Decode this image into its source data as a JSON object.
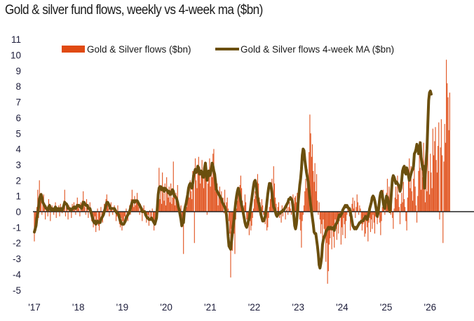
{
  "title": "Gold & silver fund flows, weekly vs 4-week ma ($bn)",
  "chart_data": {
    "type": "bar",
    "title": "Gold & silver fund flows, weekly vs 4-week ma ($bn)",
    "xlabel": "",
    "ylabel": "",
    "ylim": [
      -5,
      11
    ],
    "yticks": [
      11,
      10,
      9,
      8,
      7,
      6,
      5,
      4,
      3,
      2,
      1,
      0,
      -1,
      -2,
      -3,
      -4,
      -5
    ],
    "ytick_labels": [
      "11",
      "10",
      "9",
      "8",
      "7",
      "6",
      "5",
      "4",
      "3",
      "2",
      "1",
      "0",
      "-1",
      "-2",
      "-3",
      "-4",
      "-5"
    ],
    "xlim": [
      2017.0,
      2026.85
    ],
    "xticks": [
      2017,
      2018,
      2019,
      2020,
      2021,
      2022,
      2023,
      2024,
      2025,
      2026
    ],
    "xtick_labels": [
      "'17",
      "'18",
      "'19",
      "'20",
      "'21",
      "'22",
      "'23",
      "'24",
      "'25",
      "'26"
    ],
    "grid": false,
    "legend": {
      "placement": "top",
      "entries": [
        {
          "name": "Gold & Silver flows ($bn)",
          "type": "bar",
          "color": "#e04a12"
        },
        {
          "name": "Gold & Silver flows 4-week MA ($bn)",
          "type": "line",
          "color": "#6b4f0e"
        }
      ]
    },
    "colors": {
      "bars": "#e04a12",
      "line": "#6b4f0e",
      "zero_line": "#222222"
    },
    "x_start": 2017.0,
    "x_step_weeks": 1,
    "series": [
      {
        "name": "Gold & Silver flows ($bn)",
        "type": "bar",
        "values": [
          -1.9,
          -0.8,
          -1.2,
          0.3,
          1.4,
          -0.4,
          2.0,
          0.9,
          1.2,
          -0.2,
          0.6,
          1.1,
          0.3,
          -0.5,
          0.4,
          0.2,
          -0.3,
          0.8,
          0.5,
          -0.6,
          0.2,
          0.4,
          0.1,
          -0.2,
          0.3,
          0.6,
          -0.4,
          0.2,
          0.0,
          0.4,
          -0.3,
          0.5,
          0.2,
          -0.1,
          0.3,
          0.7,
          1.4,
          -0.3,
          0.6,
          0.2,
          -0.5,
          0.4,
          0.3,
          0.1,
          -0.4,
          0.5,
          0.2,
          0.6,
          0.3,
          -0.2,
          0.5,
          0.9,
          0.4,
          0.2,
          -0.3,
          0.6,
          0.1,
          0.7,
          1.3,
          0.5,
          0.3,
          -0.2,
          0.8,
          0.3,
          -0.4,
          0.2,
          0.6,
          -0.2,
          -0.6,
          -0.4,
          -1.0,
          -0.8,
          -0.3,
          -1.3,
          -0.6,
          0.2,
          -0.9,
          -1.2,
          -0.5,
          0.3,
          -0.4,
          -0.7,
          0.1,
          0.5,
          0.2,
          0.8,
          1.1,
          0.4,
          0.2,
          -0.3,
          0.1,
          0.6,
          0.3,
          -0.2,
          0.2,
          0.4,
          0.1,
          -0.6,
          -0.3,
          0.4,
          -0.2,
          -0.8,
          -1.0,
          -0.4,
          -1.2,
          -0.6,
          -0.9,
          -0.3,
          -0.7,
          0.2,
          -0.4,
          -0.6,
          0.1,
          0.4,
          -0.2,
          0.8,
          1.4,
          0.6,
          0.3,
          1.0,
          0.4,
          0.7,
          1.2,
          0.6,
          0.3,
          -0.2,
          0.5,
          0.1,
          -0.6,
          0.2,
          0.4,
          0.1,
          -0.3,
          -0.7,
          -0.4,
          -0.2,
          -0.9,
          0.1,
          -0.5,
          -0.4,
          0.2,
          -0.6,
          -1.2,
          -0.8,
          -0.3,
          -0.5,
          0.4,
          1.5,
          2.8,
          0.8,
          1.6,
          0.5,
          2.5,
          1.2,
          0.7,
          1.8,
          0.4,
          2.2,
          1.3,
          0.9,
          1.6,
          0.6,
          1.8,
          0.5,
          0.9,
          3.2,
          1.0,
          0.4,
          1.2,
          0.8,
          1.7,
          0.6,
          0.3,
          -0.2,
          0.4,
          -1.0,
          -0.6,
          -2.7,
          -0.4,
          0.1,
          0.4,
          0.3,
          0.8,
          1.4,
          0.9,
          2.0,
          1.3,
          0.8,
          2.6,
          1.7,
          -2.0,
          3.4,
          2.0,
          1.5,
          2.8,
          3.5,
          2.4,
          1.8,
          2.6,
          3.3,
          2.1,
          1.5,
          2.9,
          3.2,
          2.2,
          -0.2,
          1.8,
          2.4,
          3.4,
          1.6,
          2.8,
          2.2,
          3.7,
          4.0,
          2.5,
          1.3,
          2.0,
          1.8,
          0.4,
          1.1,
          1.6,
          0.8,
          1.3,
          0.7,
          0.9,
          -0.1,
          1.4,
          0.3,
          0.6,
          0.9,
          0.2,
          -0.6,
          -1.4,
          -4.2,
          -1.1,
          -2.5,
          -0.8,
          -1.4,
          -2.7,
          -0.5,
          0.2,
          0.7,
          1.3,
          0.9,
          1.7,
          2.3,
          1.5,
          0.7,
          -0.3,
          0.4,
          1.1,
          0.6,
          -0.5,
          -0.9,
          -0.3,
          -1.5,
          -0.6,
          -1.2,
          -0.9,
          -0.4,
          0.2,
          0.8,
          1.3,
          1.0,
          1.7,
          2.4,
          1.8,
          0.9,
          0.6,
          0.3,
          0.8,
          0.4,
          -0.2,
          -0.5,
          -0.8,
          -0.3,
          -1.2,
          -1.0,
          -0.4,
          0.3,
          0.8,
          1.5,
          2.1,
          1.3,
          2.9,
          1.8,
          0.9,
          0.5,
          -0.2,
          0.3,
          0.6,
          -0.4,
          -0.2,
          -0.7,
          0.4,
          -0.3,
          0.2,
          0.3,
          -0.5,
          0.1,
          0.4,
          -0.2,
          0.3,
          0.6,
          0.2,
          -0.2,
          0.7,
          1.1,
          0.5,
          0.9,
          1.0,
          0.6,
          1.2,
          0.3,
          0.8,
          -0.5,
          -1.2,
          -2.3,
          -0.6,
          -0.2,
          0.4,
          1.3,
          2.1,
          1.5,
          2.7,
          1.9,
          3.8,
          6.2,
          5.0,
          3.5,
          4.3,
          2.6,
          1.9,
          3.1,
          1.3,
          2.4,
          0.7,
          -0.2,
          0.6,
          -0.5,
          -1.4,
          -0.8,
          -2.3,
          -0.5,
          -1.1,
          -1.7,
          -3.2,
          -2.0,
          -4.6,
          -3.8,
          -2.1,
          -1.7,
          -1.2,
          -2.4,
          -0.9,
          -1.6,
          -2.3,
          -0.5,
          -1.1,
          -1.8,
          -0.8,
          -1.4,
          -0.6,
          -0.3,
          -2.1,
          -1.0,
          -1.5,
          -0.4,
          -0.8,
          -1.7,
          -0.6,
          -0.2,
          0.4,
          0.1,
          -0.3,
          -1.2,
          -0.5,
          0.5,
          0.9,
          0.2,
          0.7,
          -0.4,
          0.3,
          1.1,
          0.6,
          -0.2,
          0.4,
          0.2,
          -0.5,
          -1.2,
          -0.8,
          -0.3,
          -1.6,
          -1.4,
          -0.6,
          -1.0,
          -1.9,
          -0.7,
          -0.4,
          -1.3,
          -0.5,
          -1.1,
          -0.2,
          -0.7,
          -1.4,
          -0.3,
          0.4,
          -0.8,
          -0.4,
          0.2,
          -0.7,
          -1.5,
          -0.6,
          0.3,
          1.4,
          0.6,
          -0.2,
          0.3,
          1.2,
          2.1,
          0.8,
          1.6,
          0.4,
          -0.2,
          0.6,
          -0.4,
          -1.1,
          0.2,
          0.9,
          1.6,
          0.8,
          2.3,
          1.1,
          0.3,
          -0.8,
          0.5,
          1.2,
          0.6,
          1.9,
          0.8,
          0.3,
          -0.6,
          -1.2,
          0.9,
          2.4,
          3.4,
          1.5,
          2.9,
          1.3,
          0.7,
          2.1,
          3.3,
          1.6,
          0.4,
          -0.7,
          1.0,
          2.6,
          4.5,
          2.8,
          1.4,
          3.4,
          2.2,
          4.4,
          2.1,
          0.6,
          2.7,
          1.3,
          3.9,
          2.6,
          1.1,
          3.7,
          2.5,
          1.5,
          5.3,
          3.6,
          4.5,
          5.4,
          3.3,
          2.5,
          4.2,
          5.7,
          -0.5,
          4.1,
          5.9,
          3.6,
          -2.0,
          3.2,
          5.6,
          4.4,
          9.7,
          8.2,
          7.3,
          5.2,
          7.6
        ],
        "color": "#e04a12"
      },
      {
        "name": "Gold & Silver flows 4-week MA ($bn)",
        "type": "line",
        "values": [
          -1.3,
          -1.1,
          -0.9,
          -0.4,
          -0.1,
          0.3,
          0.8,
          1.0,
          1.1,
          0.9,
          0.6,
          0.5,
          0.4,
          0.3,
          0.2,
          0.2,
          0.1,
          0.3,
          0.4,
          0.2,
          0.1,
          0.2,
          0.1,
          0.1,
          0.2,
          0.3,
          0.1,
          0.2,
          0.1,
          0.2,
          0.1,
          0.2,
          0.2,
          0.1,
          0.2,
          0.4,
          0.6,
          0.5,
          0.5,
          0.4,
          0.2,
          0.2,
          0.2,
          0.1,
          0.1,
          0.2,
          0.2,
          0.3,
          0.3,
          0.2,
          0.3,
          0.4,
          0.4,
          0.4,
          0.3,
          0.3,
          0.2,
          0.4,
          0.6,
          0.6,
          0.5,
          0.4,
          0.4,
          0.4,
          0.2,
          0.2,
          0.2,
          0.0,
          -0.2,
          -0.4,
          -0.6,
          -0.7,
          -0.6,
          -0.8,
          -0.7,
          -0.6,
          -0.7,
          -0.7,
          -0.7,
          -0.5,
          -0.4,
          -0.3,
          -0.2,
          0.0,
          0.2,
          0.4,
          0.6,
          0.6,
          0.5,
          0.4,
          0.2,
          0.2,
          0.2,
          0.2,
          0.2,
          0.2,
          0.1,
          0.0,
          -0.1,
          -0.1,
          -0.2,
          -0.4,
          -0.6,
          -0.7,
          -0.8,
          -0.8,
          -0.8,
          -0.7,
          -0.6,
          -0.4,
          -0.3,
          -0.2,
          -0.1,
          0.0,
          0.2,
          0.4,
          0.6,
          0.7,
          0.7,
          0.6,
          0.7,
          0.7,
          0.7,
          0.6,
          0.5,
          0.4,
          0.3,
          0.2,
          0.0,
          0.0,
          0.0,
          0.0,
          -0.2,
          -0.3,
          -0.4,
          -0.4,
          -0.5,
          -0.5,
          -0.5,
          -0.4,
          -0.5,
          -0.6,
          -0.7,
          -0.8,
          -0.6,
          -0.4,
          0.3,
          1.1,
          1.5,
          1.6,
          1.6,
          1.4,
          1.5,
          1.5,
          1.3,
          1.5,
          1.4,
          1.4,
          1.3,
          1.2,
          1.3,
          1.1,
          1.1,
          1.2,
          1.4,
          1.3,
          1.0,
          1.0,
          0.9,
          0.8,
          0.6,
          0.3,
          0.1,
          -0.2,
          -0.5,
          -0.9,
          -0.7,
          -0.7,
          0.0,
          0.3,
          0.5,
          0.8,
          1.1,
          1.5,
          1.7,
          1.8,
          1.7,
          1.5,
          1.8,
          2.3,
          2.5,
          2.7,
          2.5,
          2.6,
          2.9,
          2.8,
          2.4,
          2.4,
          2.6,
          2.5,
          2.2,
          2.2,
          2.8,
          3.1,
          2.5,
          2.0,
          2.4,
          2.6,
          2.3,
          2.4,
          2.7,
          3.1,
          2.9,
          2.6,
          2.4,
          1.9,
          1.4,
          1.3,
          1.2,
          1.1,
          1.0,
          0.9,
          0.8,
          0.6,
          0.5,
          0.4,
          0.3,
          0.1,
          -0.2,
          -0.8,
          -1.6,
          -2.2,
          -2.3,
          -2.4,
          -1.9,
          -1.4,
          -0.9,
          -0.5,
          0.1,
          0.6,
          1.0,
          1.3,
          1.5,
          1.3,
          1.0,
          0.7,
          0.4,
          0.2,
          -0.1,
          -0.4,
          -0.7,
          -0.9,
          -1.0,
          -0.8,
          -0.6,
          -0.4,
          0.0,
          0.4,
          0.8,
          1.2,
          1.6,
          1.9,
          2.0,
          1.8,
          1.3,
          0.9,
          0.6,
          0.4,
          0.1,
          -0.2,
          -0.4,
          -0.6,
          -0.6,
          -0.5,
          -0.3,
          0.1,
          0.6,
          1.1,
          1.5,
          1.8,
          1.8,
          1.6,
          1.2,
          0.7,
          0.3,
          0.2,
          0.0,
          -0.2,
          -0.3,
          -0.2,
          -0.1,
          -0.1,
          -0.1,
          0.0,
          0.0,
          0.1,
          0.1,
          0.2,
          0.3,
          0.4,
          0.5,
          0.6,
          0.8,
          0.8,
          0.9,
          0.8,
          0.7,
          0.3,
          -0.3,
          -0.9,
          -1.1,
          -0.8,
          -0.2,
          0.5,
          1.1,
          1.7,
          2.1,
          2.7,
          3.6,
          4.0,
          3.9,
          3.3,
          2.9,
          2.5,
          2.2,
          1.9,
          1.4,
          0.9,
          0.4,
          0.0,
          -0.4,
          -0.8,
          -1.3,
          -1.4,
          -1.4,
          -1.8,
          -2.2,
          -2.7,
          -3.4,
          -3.6,
          -3.3,
          -2.9,
          -2.1,
          -1.8,
          -1.6,
          -1.5,
          -1.3,
          -1.2,
          -1.1,
          -1.0,
          -1.1,
          -1.0,
          -1.0,
          -1.1,
          -1.1,
          -1.0,
          -1.2,
          -0.9,
          -0.8,
          -0.7,
          -0.6,
          -0.4,
          -0.2,
          -0.3,
          -0.2,
          -0.1,
          0.1,
          0.2,
          0.3,
          0.4,
          0.3,
          0.4,
          0.3,
          0.2,
          0.2,
          0.0,
          -0.3,
          -0.6,
          -0.9,
          -1.0,
          -1.1,
          -1.0,
          -1.1,
          -1.0,
          -0.9,
          -0.8,
          -0.7,
          -0.7,
          -0.6,
          -0.6,
          -0.6,
          -0.5,
          -0.4,
          -0.3,
          -0.4,
          -0.5,
          -0.3,
          -0.1,
          0.2,
          0.4,
          0.6,
          0.9,
          1.0,
          0.9,
          0.7,
          0.4,
          0.1,
          -0.3,
          -0.1,
          0.4,
          0.9,
          1.2,
          1.3,
          1.1,
          0.6,
          0.3,
          0.2,
          0.7,
          1.0,
          0.9,
          0.6,
          0.2,
          0.0,
          0.6,
          1.4,
          2.1,
          2.3,
          2.2,
          2.0,
          1.8,
          1.9,
          1.8,
          1.7,
          1.6,
          1.3,
          1.5,
          2.0,
          2.6,
          2.8,
          2.9,
          2.5,
          2.4,
          2.8,
          2.6,
          2.3,
          2.0,
          2.2,
          2.4,
          2.6,
          2.7,
          2.9,
          3.7,
          3.8,
          4.0,
          4.3,
          4.1,
          3.7,
          3.9,
          4.4,
          3.5,
          3.1,
          2.7,
          2.9,
          1.5,
          2.4,
          3.2,
          4.0,
          5.6,
          7.1,
          7.6,
          7.7,
          7.5
        ],
        "color": "#6b4f0e"
      }
    ]
  }
}
